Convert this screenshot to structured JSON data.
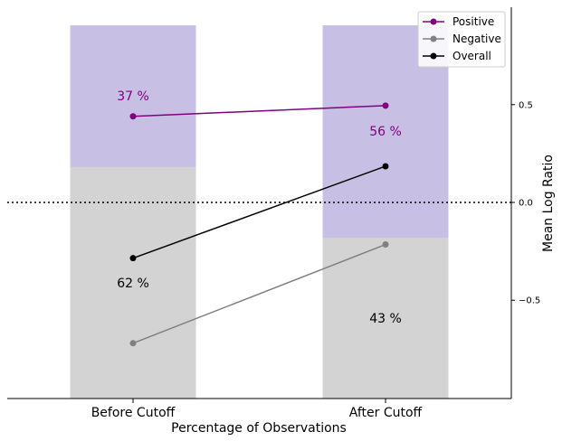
{
  "chart_data": {
    "type": "bar",
    "categories": [
      "Before Cutoff",
      "After Cutoff"
    ],
    "xlabel": "Percentage of Observations",
    "ylabel": "Mean Log Ratio",
    "yticks": [
      "0.5",
      "0.0",
      "−0.5"
    ],
    "ytick_values": [
      0.5,
      0.0,
      -0.5
    ],
    "stacked_share": [
      {
        "negative_pct": 62,
        "positive_pct": 37,
        "negative_label": "62 %",
        "positive_label": "37 %"
      },
      {
        "negative_pct": 43,
        "positive_pct": 56,
        "negative_label": "43 %",
        "positive_label": "56 %"
      }
    ],
    "series": [
      {
        "name": "Positive",
        "values": [
          0.44,
          0.495
        ],
        "color": "#800080"
      },
      {
        "name": "Negative",
        "values": [
          -0.72,
          -0.215
        ],
        "color": "#808080"
      },
      {
        "name": "Overall",
        "values": [
          -0.285,
          0.185
        ],
        "color": "#000000"
      }
    ],
    "bar_colors": {
      "negative": "#d3d3d3",
      "positive": "#c8c0e4"
    },
    "zero_line": "dotted",
    "legend_position": "top-right",
    "grid": false
  }
}
